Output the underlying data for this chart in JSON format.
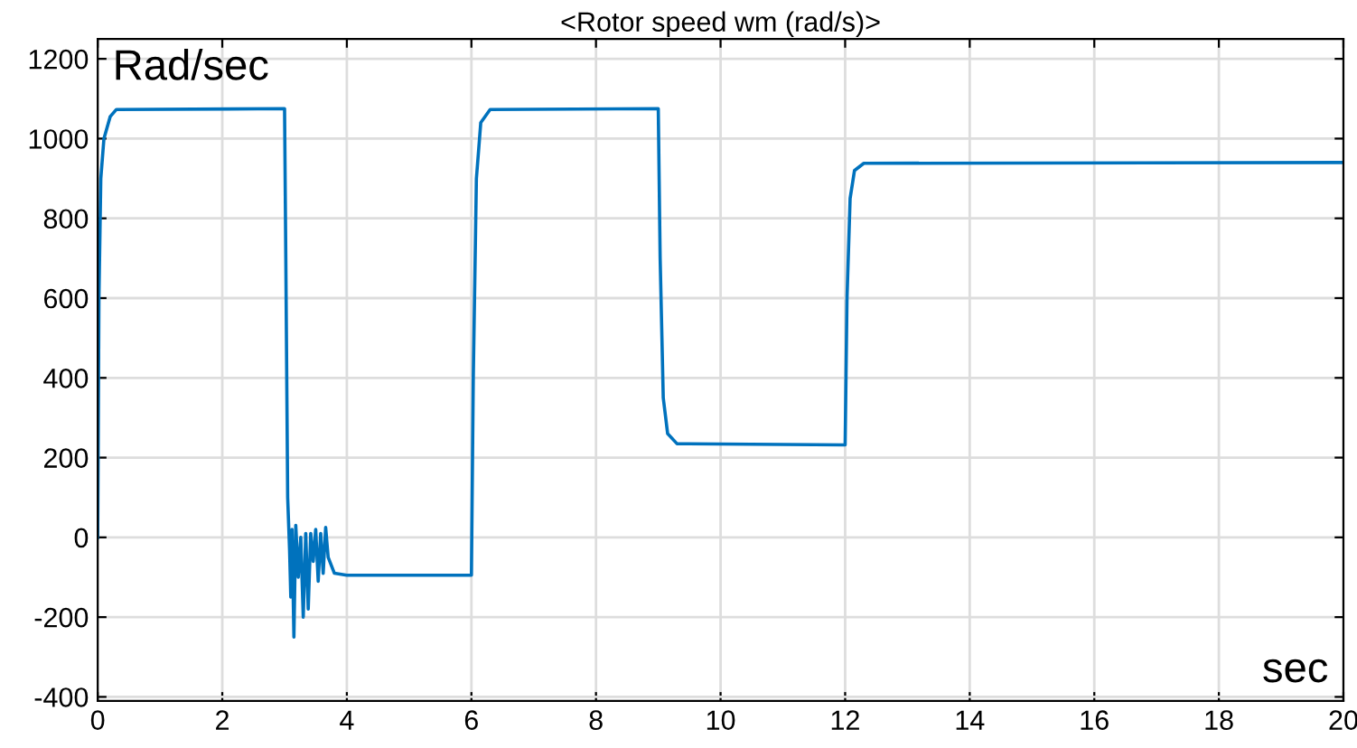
{
  "chart_data": {
    "type": "line",
    "title": "<Rotor speed wm (rad/s)>",
    "xlabel": "sec",
    "ylabel": "Rad/sec",
    "xlim": [
      0,
      20
    ],
    "ylim": [
      -410,
      1250
    ],
    "xticks": [
      0,
      2,
      4,
      6,
      8,
      10,
      12,
      14,
      16,
      18,
      20
    ],
    "yticks": [
      -400,
      -200,
      0,
      200,
      400,
      600,
      800,
      1000,
      1200
    ],
    "grid": true,
    "series": [
      {
        "color": "#0072bd",
        "x": [
          0,
          0.02,
          0.05,
          0.1,
          0.2,
          0.3,
          3.0,
          3.02,
          3.05,
          3.08,
          3.1,
          3.12,
          3.15,
          3.18,
          3.22,
          3.26,
          3.3,
          3.34,
          3.38,
          3.42,
          3.46,
          3.5,
          3.54,
          3.58,
          3.62,
          3.66,
          3.7,
          3.8,
          4,
          6.0,
          6.03,
          6.08,
          6.15,
          6.3,
          9.0,
          9.03,
          9.08,
          9.15,
          9.3,
          12.0,
          12.03,
          12.08,
          12.15,
          12.3,
          20
        ],
        "values": [
          0,
          600,
          900,
          1000,
          1055,
          1073,
          1075,
          700,
          100,
          -30,
          -150,
          20,
          -250,
          30,
          -100,
          0,
          -200,
          10,
          -180,
          10,
          -60,
          20,
          -110,
          10,
          -90,
          25,
          -50,
          -90,
          -95,
          -95,
          400,
          900,
          1040,
          1073,
          1075,
          700,
          350,
          260,
          235,
          232,
          600,
          850,
          920,
          938,
          940
        ]
      }
    ]
  }
}
